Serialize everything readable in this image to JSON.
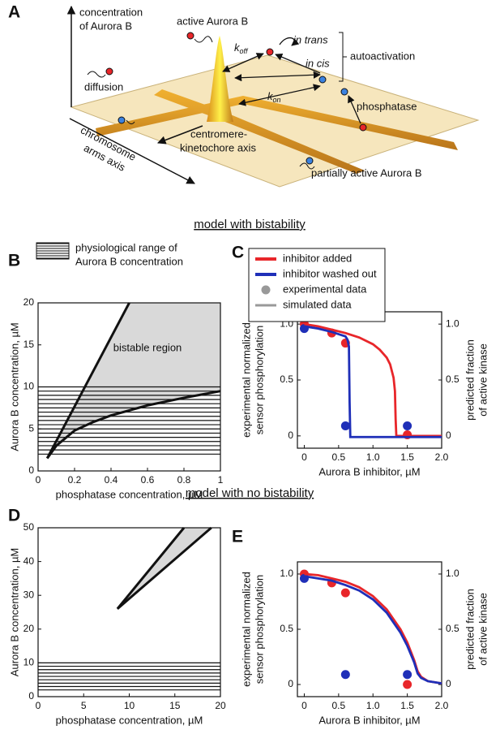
{
  "panel_a": {
    "label": "A",
    "y_axis": [
      "concentration",
      "of Aurora B"
    ],
    "active": "active Aurora B",
    "koff": {
      "k": "k",
      "sub": "off"
    },
    "in_trans": "in trans",
    "in_cis": "in cis",
    "autoactivation": "autoactivation",
    "diffusion": "diffusion",
    "kon": {
      "k": "k",
      "sub": "on"
    },
    "phosphatase": "phosphatase",
    "centromere_axis": [
      "centromere-",
      "kinetochore axis"
    ],
    "arms_axis": [
      "chromosome",
      "arms axis"
    ],
    "partial": "partially active Aurora B"
  },
  "headings": [
    "model with bistability",
    "model with no bistability"
  ],
  "chart_data": [
    {
      "type": "region",
      "label": "B",
      "legend_text": [
        "physiological range of",
        "Aurora B concentration"
      ],
      "xlabel": "phosphatase concentration, µM",
      "ylabel": "Aurora B concentration, µM",
      "xlim": [
        0,
        1
      ],
      "ylim": [
        0,
        20
      ],
      "xticks": [
        0,
        0.2,
        0.4,
        0.6,
        0.8,
        1
      ],
      "yticks": [
        0,
        5,
        10,
        15,
        20
      ],
      "range_lines": [
        2,
        2.5,
        3,
        3.5,
        4,
        4.5,
        5,
        5.5,
        6,
        6.5,
        7,
        7.5,
        8,
        8.5,
        9,
        9.5,
        10
      ],
      "region_label": "bistable region",
      "fill_color": "#d9d9d9",
      "upper": {
        "x": [
          0.05,
          0.5
        ],
        "y": [
          1.5,
          20
        ]
      },
      "lower": {
        "x": [
          0.05,
          0.1,
          0.2,
          0.3,
          0.4,
          0.6,
          0.8,
          1.0
        ],
        "y": [
          1.5,
          3,
          4.8,
          5.8,
          6.6,
          7.8,
          8.7,
          9.5
        ]
      }
    },
    {
      "type": "line",
      "label": "C",
      "xlabel": "Aurora B inhibitor, µM",
      "ylabel": [
        "experimental normalized",
        "sensor phosphorylation"
      ],
      "y2label": [
        "predicted fraction",
        "of active kinase"
      ],
      "xlim": [
        -0.1,
        2.0
      ],
      "ylim": [
        -0.11,
        1.11
      ],
      "y2lim": [
        -0.11,
        1.11
      ],
      "xticks": [
        0,
        0.5,
        {
          "value": 1,
          "label": "1.0"
        },
        1.5,
        {
          "value": 2,
          "label": "2.0"
        }
      ],
      "yticks": [
        0,
        0.5,
        {
          "value": 1,
          "label": "1.0"
        }
      ],
      "y2ticks": [
        0,
        0.5,
        {
          "value": 1,
          "label": "1.0"
        }
      ],
      "series": [
        {
          "name": "inhibitor added",
          "color": "#e8262a",
          "x": [
            0,
            0.2,
            0.4,
            0.6,
            0.8,
            1.0,
            1.1,
            1.2,
            1.25,
            1.3,
            1.32,
            1.33,
            1.34,
            1.5,
            2.0
          ],
          "values": [
            1.0,
            0.98,
            0.95,
            0.92,
            0.88,
            0.82,
            0.77,
            0.7,
            0.64,
            0.52,
            0.4,
            0.15,
            0.0,
            0.0,
            0.0
          ]
        },
        {
          "name": "inhibitor washed out",
          "color": "#1f2fb8",
          "x": [
            0,
            0.2,
            0.4,
            0.5,
            0.6,
            0.63,
            0.65,
            0.66,
            0.67,
            0.8,
            1.5,
            2.0
          ],
          "values": [
            0.98,
            0.96,
            0.93,
            0.91,
            0.89,
            0.86,
            0.8,
            0.3,
            -0.01,
            -0.01,
            -0.01,
            -0.01
          ]
        }
      ],
      "points": [
        {
          "color": "#e8262a",
          "x": [
            0,
            0.4,
            0.6,
            1.5
          ],
          "values": [
            1.0,
            0.92,
            0.83,
            0.01
          ]
        },
        {
          "color": "#1f2fb8",
          "x": [
            0,
            0.6,
            1.5
          ],
          "values": [
            0.96,
            0.09,
            0.09
          ]
        }
      ],
      "legend_extra": [
        {
          "label": "experimental data",
          "kind": "dot",
          "color": "#999999"
        },
        {
          "label": "simulated data",
          "kind": "line",
          "color": "#999999"
        }
      ]
    },
    {
      "type": "region",
      "label": "D",
      "xlabel": "phosphatase concentration, µM",
      "ylabel": "Aurora B concentration, µM",
      "xlim": [
        0,
        20
      ],
      "ylim": [
        0,
        50
      ],
      "xticks": [
        0,
        5,
        10,
        15,
        20
      ],
      "yticks": [
        0,
        10,
        20,
        30,
        40,
        50
      ],
      "range_lines": [
        2,
        3,
        4,
        5,
        6,
        7,
        8,
        9,
        10
      ],
      "fill_color": "#d9d9d9",
      "upper": {
        "x": [
          8.7,
          16
        ],
        "y": [
          26,
          50
        ]
      },
      "lower": {
        "x": [
          8.7,
          19
        ],
        "y": [
          26,
          50
        ]
      }
    },
    {
      "type": "line",
      "label": "E",
      "xlabel": "Aurora B inhibitor, µM",
      "ylabel": [
        "experimental normalized",
        "sensor phosphorylation"
      ],
      "y2label": [
        "predicted fraction",
        "of active kinase"
      ],
      "xlim": [
        -0.1,
        2.0
      ],
      "ylim": [
        -0.11,
        1.11
      ],
      "y2lim": [
        -0.11,
        1.11
      ],
      "xticks": [
        0,
        0.5,
        {
          "value": 1,
          "label": "1.0"
        },
        1.5,
        {
          "value": 2,
          "label": "2.0"
        }
      ],
      "yticks": [
        0,
        0.5,
        {
          "value": 1,
          "label": "1.0"
        }
      ],
      "y2ticks": [
        0,
        0.5,
        {
          "value": 1,
          "label": "1.0"
        }
      ],
      "series": [
        {
          "color": "#e8262a",
          "x": [
            0,
            0.2,
            0.4,
            0.6,
            0.8,
            1.0,
            1.2,
            1.4,
            1.5,
            1.6,
            1.65,
            1.7,
            1.8,
            2.0
          ],
          "values": [
            1.0,
            0.99,
            0.96,
            0.93,
            0.88,
            0.8,
            0.68,
            0.5,
            0.38,
            0.22,
            0.12,
            0.07,
            0.03,
            0.01
          ]
        },
        {
          "color": "#1f2fb8",
          "x": [
            0,
            0.2,
            0.4,
            0.6,
            0.8,
            1.0,
            1.2,
            1.4,
            1.5,
            1.6,
            1.65,
            1.7,
            1.8,
            2.0
          ],
          "values": [
            0.98,
            0.96,
            0.94,
            0.9,
            0.85,
            0.77,
            0.65,
            0.47,
            0.35,
            0.2,
            0.1,
            0.06,
            0.03,
            0.01
          ]
        }
      ],
      "points": [
        {
          "color": "#e8262a",
          "x": [
            0,
            0.4,
            0.6,
            1.5
          ],
          "values": [
            1.0,
            0.92,
            0.83,
            0.0
          ]
        },
        {
          "color": "#1f2fb8",
          "x": [
            0,
            0.6,
            1.5
          ],
          "values": [
            0.96,
            0.09,
            0.09
          ]
        }
      ]
    }
  ]
}
